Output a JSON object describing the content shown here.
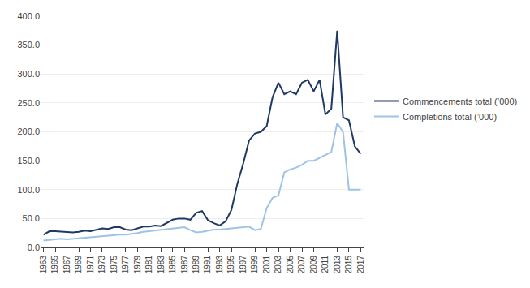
{
  "chart_data": {
    "type": "line",
    "x": [
      1963,
      1964,
      1965,
      1966,
      1967,
      1968,
      1969,
      1970,
      1971,
      1972,
      1973,
      1974,
      1975,
      1976,
      1977,
      1978,
      1979,
      1980,
      1981,
      1982,
      1983,
      1984,
      1985,
      1986,
      1987,
      1988,
      1989,
      1990,
      1991,
      1992,
      1993,
      1994,
      1995,
      1996,
      1997,
      1998,
      1999,
      2000,
      2001,
      2002,
      2003,
      2004,
      2005,
      2006,
      2007,
      2008,
      2009,
      2010,
      2011,
      2012,
      2013,
      2014,
      2015,
      2016,
      2017
    ],
    "series": [
      {
        "name": "Commencements total (’000)",
        "color": "#1f3864",
        "values": [
          22,
          28,
          28,
          27,
          26,
          26,
          27,
          29,
          28,
          30,
          33,
          32,
          35,
          35,
          31,
          30,
          33,
          36,
          36,
          38,
          37,
          42,
          48,
          50,
          50,
          48,
          60,
          63,
          47,
          42,
          38,
          45,
          65,
          110,
          145,
          185,
          197,
          200,
          210,
          260,
          285,
          265,
          270,
          265,
          285,
          290,
          270,
          290,
          230,
          240,
          375,
          225,
          220,
          175,
          162
        ]
      },
      {
        "name": "Completions total (’000)",
        "color": "#9dc3e6",
        "values": [
          12,
          13,
          14,
          15,
          14,
          15,
          16,
          16,
          17,
          18,
          19,
          20,
          21,
          22,
          22,
          23,
          25,
          27,
          28,
          30,
          30,
          32,
          33,
          34,
          35,
          30,
          26,
          27,
          29,
          31,
          31,
          32,
          33,
          34,
          35,
          36,
          30,
          32,
          68,
          86,
          90,
          130,
          135,
          138,
          143,
          150,
          150,
          155,
          160,
          165,
          215,
          200,
          100,
          100,
          100
        ]
      }
    ],
    "xlim": [
      1962.5,
      2017.5
    ],
    "xticks": [
      1963,
      1965,
      1967,
      1969,
      1971,
      1973,
      1975,
      1977,
      1979,
      1981,
      1983,
      1985,
      1987,
      1989,
      1991,
      1993,
      1995,
      1997,
      1999,
      2001,
      2003,
      2005,
      2007,
      2009,
      2011,
      2013,
      2015,
      2017
    ],
    "ylim": [
      0,
      400
    ],
    "yticks": [
      {
        "value": 0,
        "label": "0.0"
      },
      {
        "value": 50,
        "label": "50.0"
      },
      {
        "value": 100,
        "label": "100.0"
      },
      {
        "value": 150,
        "label": "150.0"
      },
      {
        "value": 200,
        "label": "200.0"
      },
      {
        "value": 250,
        "label": "250.0"
      },
      {
        "value": 300,
        "label": "300.0"
      },
      {
        "value": 350,
        "label": "350.0"
      },
      {
        "value": 400,
        "label": "400.0"
      }
    ],
    "grid": true,
    "legend": "right"
  }
}
